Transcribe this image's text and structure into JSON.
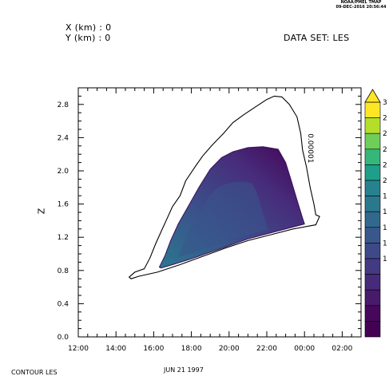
{
  "header": {
    "org_line1": "NOAA/PMEL TMAP",
    "org_line2": "09-DEC-2016 20:56:44",
    "x_info": "X (km) : 0",
    "y_info": "Y (km) : 0",
    "dataset": "DATA SET: LES"
  },
  "footer": {
    "contour_label": "CONTOUR LES"
  },
  "chart_data": {
    "type": "contour",
    "title": "",
    "xlabel": "JUN 21 1997",
    "ylabel": "Z",
    "x_ticks": [
      "12:00",
      "14:00",
      "16:00",
      "18:00",
      "20:00",
      "22:00",
      "00:00",
      "02:00"
    ],
    "x_tick_hours": [
      12,
      14,
      16,
      18,
      20,
      22,
      24,
      26
    ],
    "xlim_hours": [
      12,
      27
    ],
    "y_ticks": [
      "0.0",
      "0.4",
      "0.8",
      "1.2",
      "1.6",
      "2.0",
      "2.4",
      "2.8"
    ],
    "y_tick_values": [
      0.0,
      0.4,
      0.8,
      1.2,
      1.6,
      2.0,
      2.4,
      2.8
    ],
    "ylim": [
      0.0,
      3.0
    ],
    "outline_contour_label": "0.00001",
    "colorbar_labels": [
      "3",
      "2",
      "2",
      "2",
      "2",
      "2",
      "1",
      "1",
      "1",
      "1",
      "1"
    ],
    "colorbar_colors": [
      "#fde725",
      "#b5de2b",
      "#6ece58",
      "#35b779",
      "#1f9e89",
      "#26828e",
      "#31688e",
      "#3e4989",
      "#482878",
      "#46186a",
      "#440154"
    ],
    "outline_contour": [
      [
        14.7,
        0.72
      ],
      [
        15.0,
        0.78
      ],
      [
        15.5,
        0.82
      ],
      [
        15.8,
        0.95
      ],
      [
        16.1,
        1.12
      ],
      [
        16.4,
        1.27
      ],
      [
        16.7,
        1.42
      ],
      [
        17.0,
        1.57
      ],
      [
        17.4,
        1.7
      ],
      [
        17.7,
        1.88
      ],
      [
        18.2,
        2.05
      ],
      [
        18.6,
        2.18
      ],
      [
        19.1,
        2.31
      ],
      [
        19.7,
        2.45
      ],
      [
        20.2,
        2.58
      ],
      [
        20.8,
        2.68
      ],
      [
        21.4,
        2.77
      ],
      [
        22.0,
        2.86
      ],
      [
        22.4,
        2.9
      ],
      [
        22.8,
        2.89
      ],
      [
        23.2,
        2.8
      ],
      [
        23.6,
        2.65
      ],
      [
        23.8,
        2.45
      ],
      [
        23.9,
        2.25
      ],
      [
        24.1,
        2.05
      ],
      [
        24.3,
        1.8
      ],
      [
        24.5,
        1.6
      ],
      [
        24.6,
        1.47
      ],
      [
        24.8,
        1.45
      ],
      [
        24.7,
        1.4
      ],
      [
        24.6,
        1.35
      ],
      [
        23.4,
        1.3
      ],
      [
        22.2,
        1.23
      ],
      [
        21.0,
        1.16
      ],
      [
        19.8,
        1.07
      ],
      [
        18.6,
        0.97
      ],
      [
        17.4,
        0.87
      ],
      [
        16.2,
        0.78
      ],
      [
        15.2,
        0.73
      ],
      [
        14.8,
        0.7
      ]
    ],
    "filled_region": [
      [
        16.3,
        0.84
      ],
      [
        16.6,
        0.98
      ],
      [
        16.9,
        1.16
      ],
      [
        17.3,
        1.36
      ],
      [
        17.8,
        1.56
      ],
      [
        18.4,
        1.8
      ],
      [
        19.0,
        2.02
      ],
      [
        19.6,
        2.16
      ],
      [
        20.2,
        2.23
      ],
      [
        21.0,
        2.28
      ],
      [
        21.8,
        2.29
      ],
      [
        22.6,
        2.26
      ],
      [
        23.0,
        2.1
      ],
      [
        23.3,
        1.88
      ],
      [
        23.6,
        1.65
      ],
      [
        23.9,
        1.43
      ],
      [
        24.0,
        1.36
      ],
      [
        22.5,
        1.27
      ],
      [
        21.0,
        1.18
      ],
      [
        19.5,
        1.06
      ],
      [
        18.0,
        0.94
      ],
      [
        17.0,
        0.87
      ],
      [
        16.4,
        0.83
      ]
    ]
  }
}
